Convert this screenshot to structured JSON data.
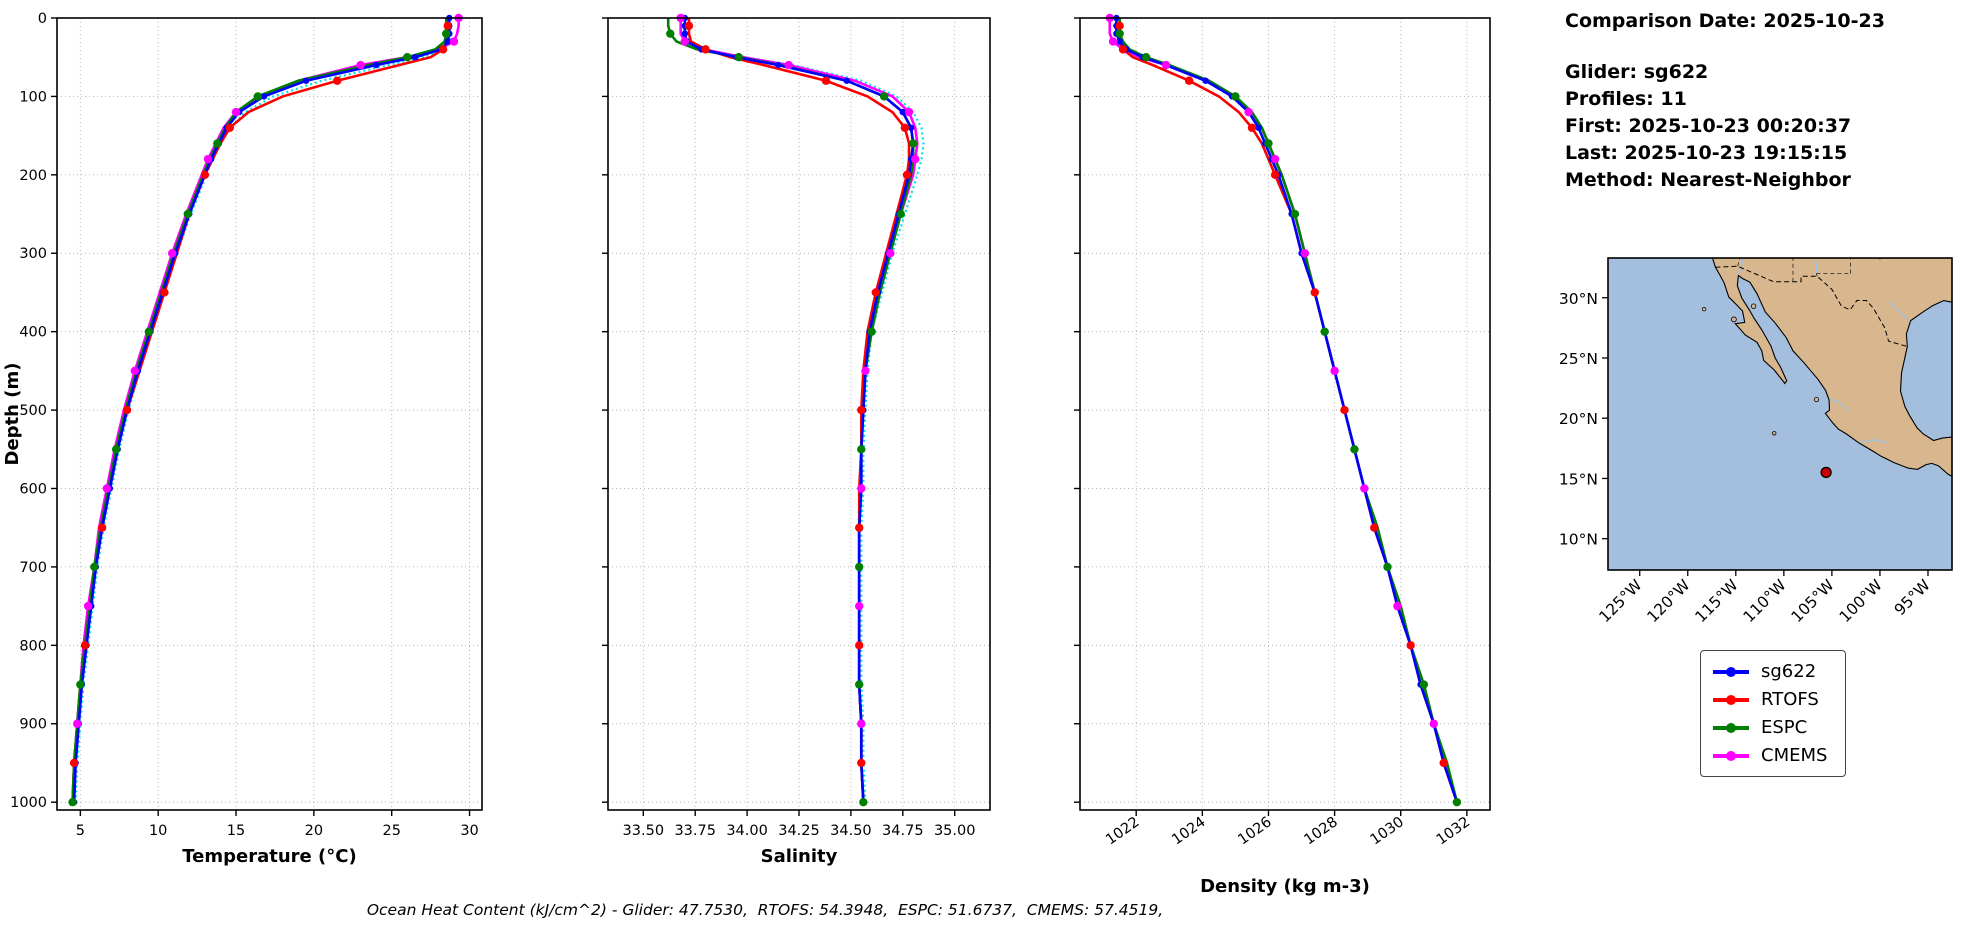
{
  "info": {
    "comparison_date": "Comparison Date: 2025-10-23",
    "glider": "Glider: sg622",
    "profiles": "Profiles: 11",
    "first": "First: 2025-10-23 00:20:37",
    "last": "Last: 2025-10-23 19:15:15",
    "method": "Method: Nearest-Neighbor"
  },
  "footer": {
    "text": "Ocean Heat Content (kJ/cm^2) - Glider: 47.7530,  RTOFS: 54.3948,  ESPC: 51.6737,  CMEMS: 57.4519,"
  },
  "legend": {
    "items": [
      {
        "label": "sg622",
        "color": "#0000ff"
      },
      {
        "label": "RTOFS",
        "color": "#ff0000"
      },
      {
        "label": "ESPC",
        "color": "#008000"
      },
      {
        "label": "CMEMS",
        "color": "#ff00ff"
      }
    ]
  },
  "map": {
    "colors": {
      "land": "#d8b78e",
      "ocean": "#a4bedd",
      "river": "#9dc0e5",
      "marker": "#cc0000"
    },
    "lat_ticks": [
      {
        "label": "30°N",
        "value": 30
      },
      {
        "label": "25°N",
        "value": 25
      },
      {
        "label": "20°N",
        "value": 20
      },
      {
        "label": "15°N",
        "value": 15
      },
      {
        "label": "10°N",
        "value": 10
      }
    ],
    "lon_ticks": [
      {
        "label": "125°W",
        "value": -125
      },
      {
        "label": "120°W",
        "value": -120
      },
      {
        "label": "115°W",
        "value": -115
      },
      {
        "label": "110°W",
        "value": -110
      },
      {
        "label": "105°W",
        "value": -105
      },
      {
        "label": "100°W",
        "value": -100
      },
      {
        "label": "95°W",
        "value": -95
      }
    ],
    "marker": {
      "lon": -105.6,
      "lat": 15.5
    }
  },
  "chart_data": [
    {
      "type": "line",
      "xlabel": "Temperature (°C)",
      "ylabel": "Depth (m)",
      "xlim": [
        3.5,
        30.8
      ],
      "ylim": [
        0,
        1010
      ],
      "xticks": [
        5,
        10,
        15,
        20,
        25,
        30
      ],
      "xtick_labels": [
        "5",
        "10",
        "15",
        "20",
        "25",
        "30"
      ],
      "yticks": [
        0,
        100,
        200,
        300,
        400,
        500,
        600,
        700,
        800,
        900,
        1000
      ],
      "ytick_labels": [
        "0",
        "100",
        "200",
        "300",
        "400",
        "500",
        "600",
        "700",
        "800",
        "900",
        "1000"
      ],
      "depths": [
        0,
        10,
        20,
        30,
        40,
        50,
        60,
        80,
        100,
        120,
        140,
        160,
        180,
        200,
        250,
        300,
        350,
        400,
        450,
        500,
        550,
        600,
        650,
        700,
        750,
        800,
        850,
        900,
        950,
        1000
      ],
      "series": [
        {
          "name": "sg622",
          "color": "#0000ff",
          "values": [
            28.7,
            28.7,
            28.7,
            28.6,
            28.2,
            26.5,
            24.0,
            19.5,
            16.8,
            15.2,
            14.4,
            13.9,
            13.4,
            13.0,
            12.0,
            11.1,
            10.3,
            9.5,
            8.7,
            8.0,
            7.4,
            6.9,
            6.4,
            6.0,
            5.7,
            5.4,
            5.1,
            4.9,
            4.7,
            4.6
          ]
        },
        {
          "name": "RTOFS",
          "color": "#ff0000",
          "values": [
            28.6,
            28.6,
            28.6,
            28.5,
            28.3,
            27.5,
            25.5,
            21.5,
            18.0,
            15.8,
            14.6,
            14.0,
            13.5,
            13.0,
            12.0,
            11.2,
            10.4,
            9.6,
            8.8,
            8.0,
            7.4,
            6.9,
            6.4,
            6.0,
            5.6,
            5.3,
            5.0,
            4.8,
            4.6,
            4.5
          ]
        },
        {
          "name": "ESPC",
          "color": "#008000",
          "values": [
            28.5,
            28.5,
            28.5,
            28.4,
            27.8,
            26.0,
            23.5,
            19.0,
            16.4,
            15.0,
            14.3,
            13.8,
            13.3,
            12.9,
            11.9,
            11.0,
            10.2,
            9.4,
            8.6,
            7.9,
            7.3,
            6.8,
            6.3,
            5.9,
            5.6,
            5.3,
            5.0,
            4.8,
            4.6,
            4.5
          ]
        },
        {
          "name": "CMEMS",
          "color": "#ff00ff",
          "values": [
            29.3,
            29.3,
            29.2,
            29.0,
            28.0,
            26.0,
            23.0,
            19.0,
            16.5,
            15.0,
            14.2,
            13.7,
            13.2,
            12.8,
            11.8,
            10.9,
            10.1,
            9.3,
            8.5,
            7.8,
            7.2,
            6.7,
            6.2,
            5.9,
            5.5,
            5.2,
            5.0,
            4.8,
            4.6,
            4.5
          ]
        },
        {
          "name": "glider-profiles",
          "color": "#00e0e8",
          "values": [
            28.8,
            28.8,
            28.8,
            28.7,
            28.4,
            27.0,
            24.8,
            20.5,
            17.4,
            15.6,
            14.6,
            14.0,
            13.5,
            13.1,
            12.1,
            11.2,
            10.4,
            9.6,
            8.8,
            8.1,
            7.5,
            7.0,
            6.5,
            6.1,
            5.8,
            5.5,
            5.2,
            5.0,
            4.8,
            4.7
          ]
        }
      ]
    },
    {
      "type": "line",
      "xlabel": "Salinity",
      "ylabel": "",
      "xlim": [
        33.33,
        35.17
      ],
      "ylim": [
        0,
        1010
      ],
      "xticks": [
        33.5,
        33.75,
        34.0,
        34.25,
        34.5,
        34.75,
        35.0
      ],
      "xtick_labels": [
        "33.50",
        "33.75",
        "34.00",
        "34.25",
        "34.50",
        "34.75",
        "35.00"
      ],
      "yticks": [
        0,
        100,
        200,
        300,
        400,
        500,
        600,
        700,
        800,
        900,
        1000
      ],
      "ytick_labels": [],
      "depths": [
        0,
        10,
        20,
        30,
        40,
        50,
        60,
        80,
        100,
        120,
        140,
        160,
        180,
        200,
        250,
        300,
        350,
        400,
        450,
        500,
        550,
        600,
        650,
        700,
        750,
        800,
        850,
        900,
        950,
        1000
      ],
      "series": [
        {
          "name": "sg622",
          "color": "#0000ff",
          "values": [
            33.7,
            33.7,
            33.7,
            33.71,
            33.78,
            33.95,
            34.15,
            34.48,
            34.66,
            34.75,
            34.79,
            34.8,
            34.79,
            34.78,
            34.73,
            34.68,
            34.63,
            34.59,
            34.57,
            34.56,
            34.55,
            34.55,
            34.54,
            34.54,
            34.54,
            34.54,
            34.54,
            34.55,
            34.55,
            34.56
          ]
        },
        {
          "name": "RTOFS",
          "color": "#ff0000",
          "values": [
            33.72,
            33.72,
            33.72,
            33.73,
            33.8,
            33.92,
            34.08,
            34.38,
            34.58,
            34.7,
            34.76,
            34.78,
            34.78,
            34.77,
            34.72,
            34.67,
            34.62,
            34.58,
            34.56,
            34.55,
            34.55,
            34.54,
            34.54,
            34.54,
            34.54,
            34.54,
            34.54,
            34.55,
            34.55,
            34.56
          ]
        },
        {
          "name": "ESPC",
          "color": "#008000",
          "values": [
            33.62,
            33.62,
            33.63,
            33.66,
            33.76,
            33.96,
            34.16,
            34.48,
            34.66,
            34.75,
            34.79,
            34.8,
            34.8,
            34.79,
            34.74,
            34.69,
            34.64,
            34.6,
            34.57,
            34.56,
            34.55,
            34.55,
            34.54,
            34.54,
            34.54,
            34.54,
            34.54,
            34.55,
            34.55,
            34.56
          ]
        },
        {
          "name": "CMEMS",
          "color": "#ff00ff",
          "values": [
            33.68,
            33.68,
            33.68,
            33.7,
            33.79,
            33.98,
            34.2,
            34.52,
            34.7,
            34.78,
            34.81,
            34.82,
            34.81,
            34.8,
            34.74,
            34.69,
            34.64,
            34.59,
            34.57,
            34.56,
            34.55,
            34.55,
            34.54,
            34.54,
            34.54,
            34.54,
            34.54,
            34.55,
            34.55,
            34.56
          ]
        },
        {
          "name": "glider-profiles",
          "color": "#00e0e8",
          "values": [
            33.71,
            33.71,
            33.71,
            33.72,
            33.8,
            33.99,
            34.22,
            34.55,
            34.72,
            34.8,
            34.84,
            34.85,
            34.84,
            34.82,
            34.76,
            34.7,
            34.65,
            34.6,
            34.58,
            34.57,
            34.56,
            34.56,
            34.55,
            34.55,
            34.55,
            34.55,
            34.55,
            34.56,
            34.56,
            34.57
          ]
        }
      ]
    },
    {
      "type": "line",
      "xlabel": "Density (kg m-3)",
      "ylabel": "",
      "xlim": [
        1020.3,
        1032.7
      ],
      "ylim": [
        0,
        1010
      ],
      "xticks": [
        1022,
        1024,
        1026,
        1028,
        1030,
        1032
      ],
      "xtick_labels": [
        "1022",
        "1024",
        "1026",
        "1028",
        "1030",
        "1032"
      ],
      "yticks": [
        0,
        100,
        200,
        300,
        400,
        500,
        600,
        700,
        800,
        900,
        1000
      ],
      "ytick_labels": [],
      "depths": [
        0,
        10,
        20,
        30,
        40,
        50,
        60,
        80,
        100,
        120,
        140,
        160,
        180,
        200,
        250,
        300,
        350,
        400,
        450,
        500,
        550,
        600,
        650,
        700,
        750,
        800,
        850,
        900,
        950,
        1000
      ],
      "series": [
        {
          "name": "sg622",
          "color": "#0000ff",
          "values": [
            1021.4,
            1021.4,
            1021.4,
            1021.5,
            1021.7,
            1022.2,
            1022.9,
            1024.1,
            1024.9,
            1025.4,
            1025.7,
            1025.9,
            1026.1,
            1026.3,
            1026.7,
            1027.0,
            1027.4,
            1027.7,
            1028.0,
            1028.3,
            1028.6,
            1028.9,
            1029.2,
            1029.6,
            1029.9,
            1030.3,
            1030.6,
            1031.0,
            1031.3,
            1031.7
          ]
        },
        {
          "name": "RTOFS",
          "color": "#ff0000",
          "values": [
            1021.5,
            1021.5,
            1021.5,
            1021.5,
            1021.6,
            1021.9,
            1022.5,
            1023.6,
            1024.5,
            1025.1,
            1025.5,
            1025.8,
            1026.0,
            1026.2,
            1026.7,
            1027.0,
            1027.4,
            1027.7,
            1028.0,
            1028.3,
            1028.6,
            1028.9,
            1029.2,
            1029.6,
            1029.9,
            1030.3,
            1030.6,
            1031.0,
            1031.3,
            1031.7
          ]
        },
        {
          "name": "ESPC",
          "color": "#008000",
          "values": [
            1021.5,
            1021.5,
            1021.5,
            1021.6,
            1021.8,
            1022.3,
            1023.0,
            1024.2,
            1025.0,
            1025.5,
            1025.8,
            1026.0,
            1026.2,
            1026.4,
            1026.8,
            1027.1,
            1027.4,
            1027.7,
            1028.0,
            1028.3,
            1028.6,
            1028.9,
            1029.3,
            1029.6,
            1030.0,
            1030.3,
            1030.7,
            1031.0,
            1031.4,
            1031.7
          ]
        },
        {
          "name": "CMEMS",
          "color": "#ff00ff",
          "values": [
            1021.2,
            1021.2,
            1021.2,
            1021.3,
            1021.6,
            1022.1,
            1022.9,
            1024.1,
            1024.9,
            1025.4,
            1025.8,
            1026.0,
            1026.2,
            1026.4,
            1026.8,
            1027.1,
            1027.4,
            1027.7,
            1028.0,
            1028.3,
            1028.6,
            1028.9,
            1029.2,
            1029.6,
            1029.9,
            1030.3,
            1030.6,
            1031.0,
            1031.3,
            1031.7
          ]
        },
        {
          "name": "glider-profiles",
          "color": "#00e0e8",
          "values": [
            1021.4,
            1021.4,
            1021.4,
            1021.5,
            1021.7,
            1022.2,
            1023.0,
            1024.2,
            1025.0,
            1025.5,
            1025.8,
            1026.0,
            1026.2,
            1026.4,
            1026.8,
            1027.1,
            1027.4,
            1027.7,
            1028.0,
            1028.3,
            1028.6,
            1028.9,
            1029.2,
            1029.6,
            1029.9,
            1030.3,
            1030.6,
            1031.0,
            1031.3,
            1031.7
          ]
        }
      ]
    }
  ]
}
